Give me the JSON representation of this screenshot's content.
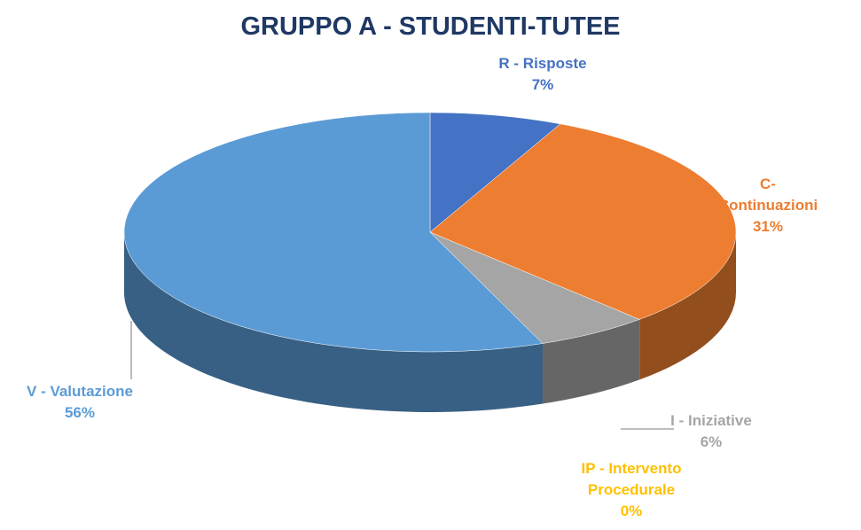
{
  "chart_data": {
    "type": "pie",
    "title": "GRUPPO A - STUDENTI-TUTEE",
    "categories": [
      "R - Risposte",
      "C- Continuazioni",
      "I - Iniziative",
      "IP - Intervento Procedurale",
      "V - Valutazione"
    ],
    "values": [
      7,
      31,
      6,
      0,
      56
    ],
    "value_labels": [
      "7%",
      "31%",
      "6%",
      "0%",
      "56%"
    ],
    "colors": [
      "#4472c4",
      "#ed7d31",
      "#a5a5a5",
      "#ffc000",
      "#5b9bd5"
    ]
  }
}
